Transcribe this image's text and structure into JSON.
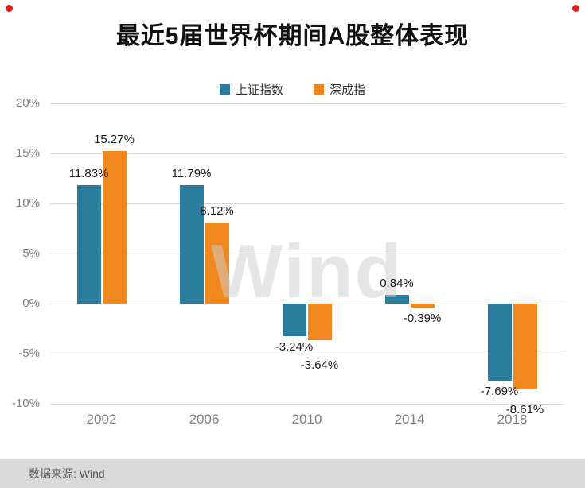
{
  "page": {
    "title": "最近5届世界杯期间A股整体表现",
    "source": "数据来源: Wind",
    "watermark": "Wind"
  },
  "chart_data": {
    "type": "bar",
    "title": "最近5届世界杯期间A股整体表现",
    "categories": [
      "2002",
      "2006",
      "2010",
      "2014",
      "2018"
    ],
    "series": [
      {
        "name": "上证指数",
        "color": "#2b7d9e",
        "values": [
          11.83,
          11.79,
          -3.24,
          0.84,
          -7.69
        ]
      },
      {
        "name": "深成指",
        "color": "#f0881e",
        "values": [
          15.27,
          8.12,
          -3.64,
          -0.39,
          -8.61
        ]
      }
    ],
    "ylim": [
      -10,
      20
    ],
    "yticks": [
      20,
      15,
      10,
      5,
      0,
      -5,
      -10
    ],
    "ytick_labels": [
      "20%",
      "15%",
      "10%",
      "5%",
      "0%",
      "-5%",
      "-10%"
    ],
    "value_suffix": "%",
    "grid": true,
    "legend_position": "top",
    "xlabel": "",
    "ylabel": ""
  }
}
